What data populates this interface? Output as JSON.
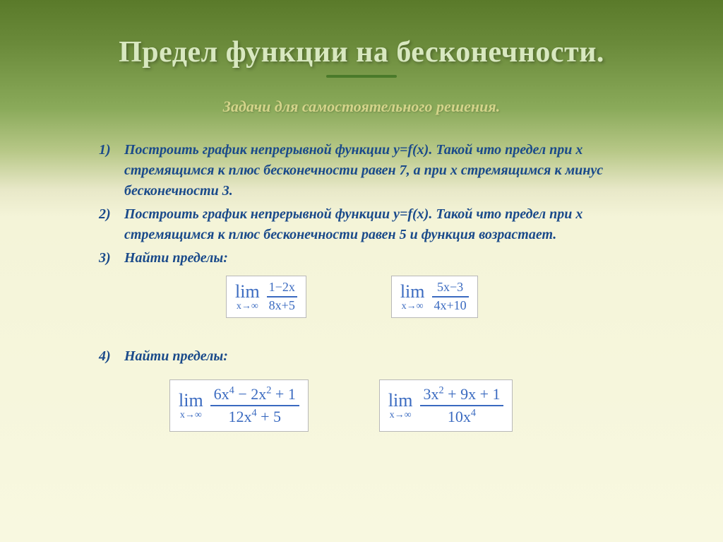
{
  "colors": {
    "title_text": "#d8e8c0",
    "subtitle_text": "#d4d48a",
    "accent": "#4a7a2a",
    "task_text": "#1a4a8a",
    "formula_text": "#3a6ac0",
    "formula_bg": "#ffffff",
    "formula_border": "#b8b8b8"
  },
  "title": "Предел функции на бесконечности.",
  "subtitle": "Задачи для самостоятельного решения.",
  "tasks": [
    {
      "num": "1)",
      "text": "Построить график непрерывной функции y=f(x). Такой что предел при x стремящимся к плюс бесконечности равен 7, а при x стремящимся к минус бесконечности 3."
    },
    {
      "num": "2)",
      "text": " Построить график непрерывной функции y=f(x). Такой что предел при x стремящимся к плюс бесконечности равен 5 и функция возрастает."
    },
    {
      "num": "3)",
      "text": "Найти пределы:"
    },
    {
      "num": "4)",
      "text": "Найти пределы:"
    }
  ],
  "lim_label": "lim",
  "lim_sub": "x→∞",
  "formulas_row1": [
    {
      "num": "1−2x",
      "den": "8x+5"
    },
    {
      "num": "5x−3",
      "den": "4x+10"
    }
  ],
  "formulas_row2": [
    {
      "num_html": "6x<sup>4</sup> − 2x<sup>2</sup> + 1",
      "den_html": "12x<sup>4</sup> + 5"
    },
    {
      "num_html": "3x<sup>2</sup> + 9x + 1",
      "den_html": "10x<sup>4</sup>"
    }
  ]
}
